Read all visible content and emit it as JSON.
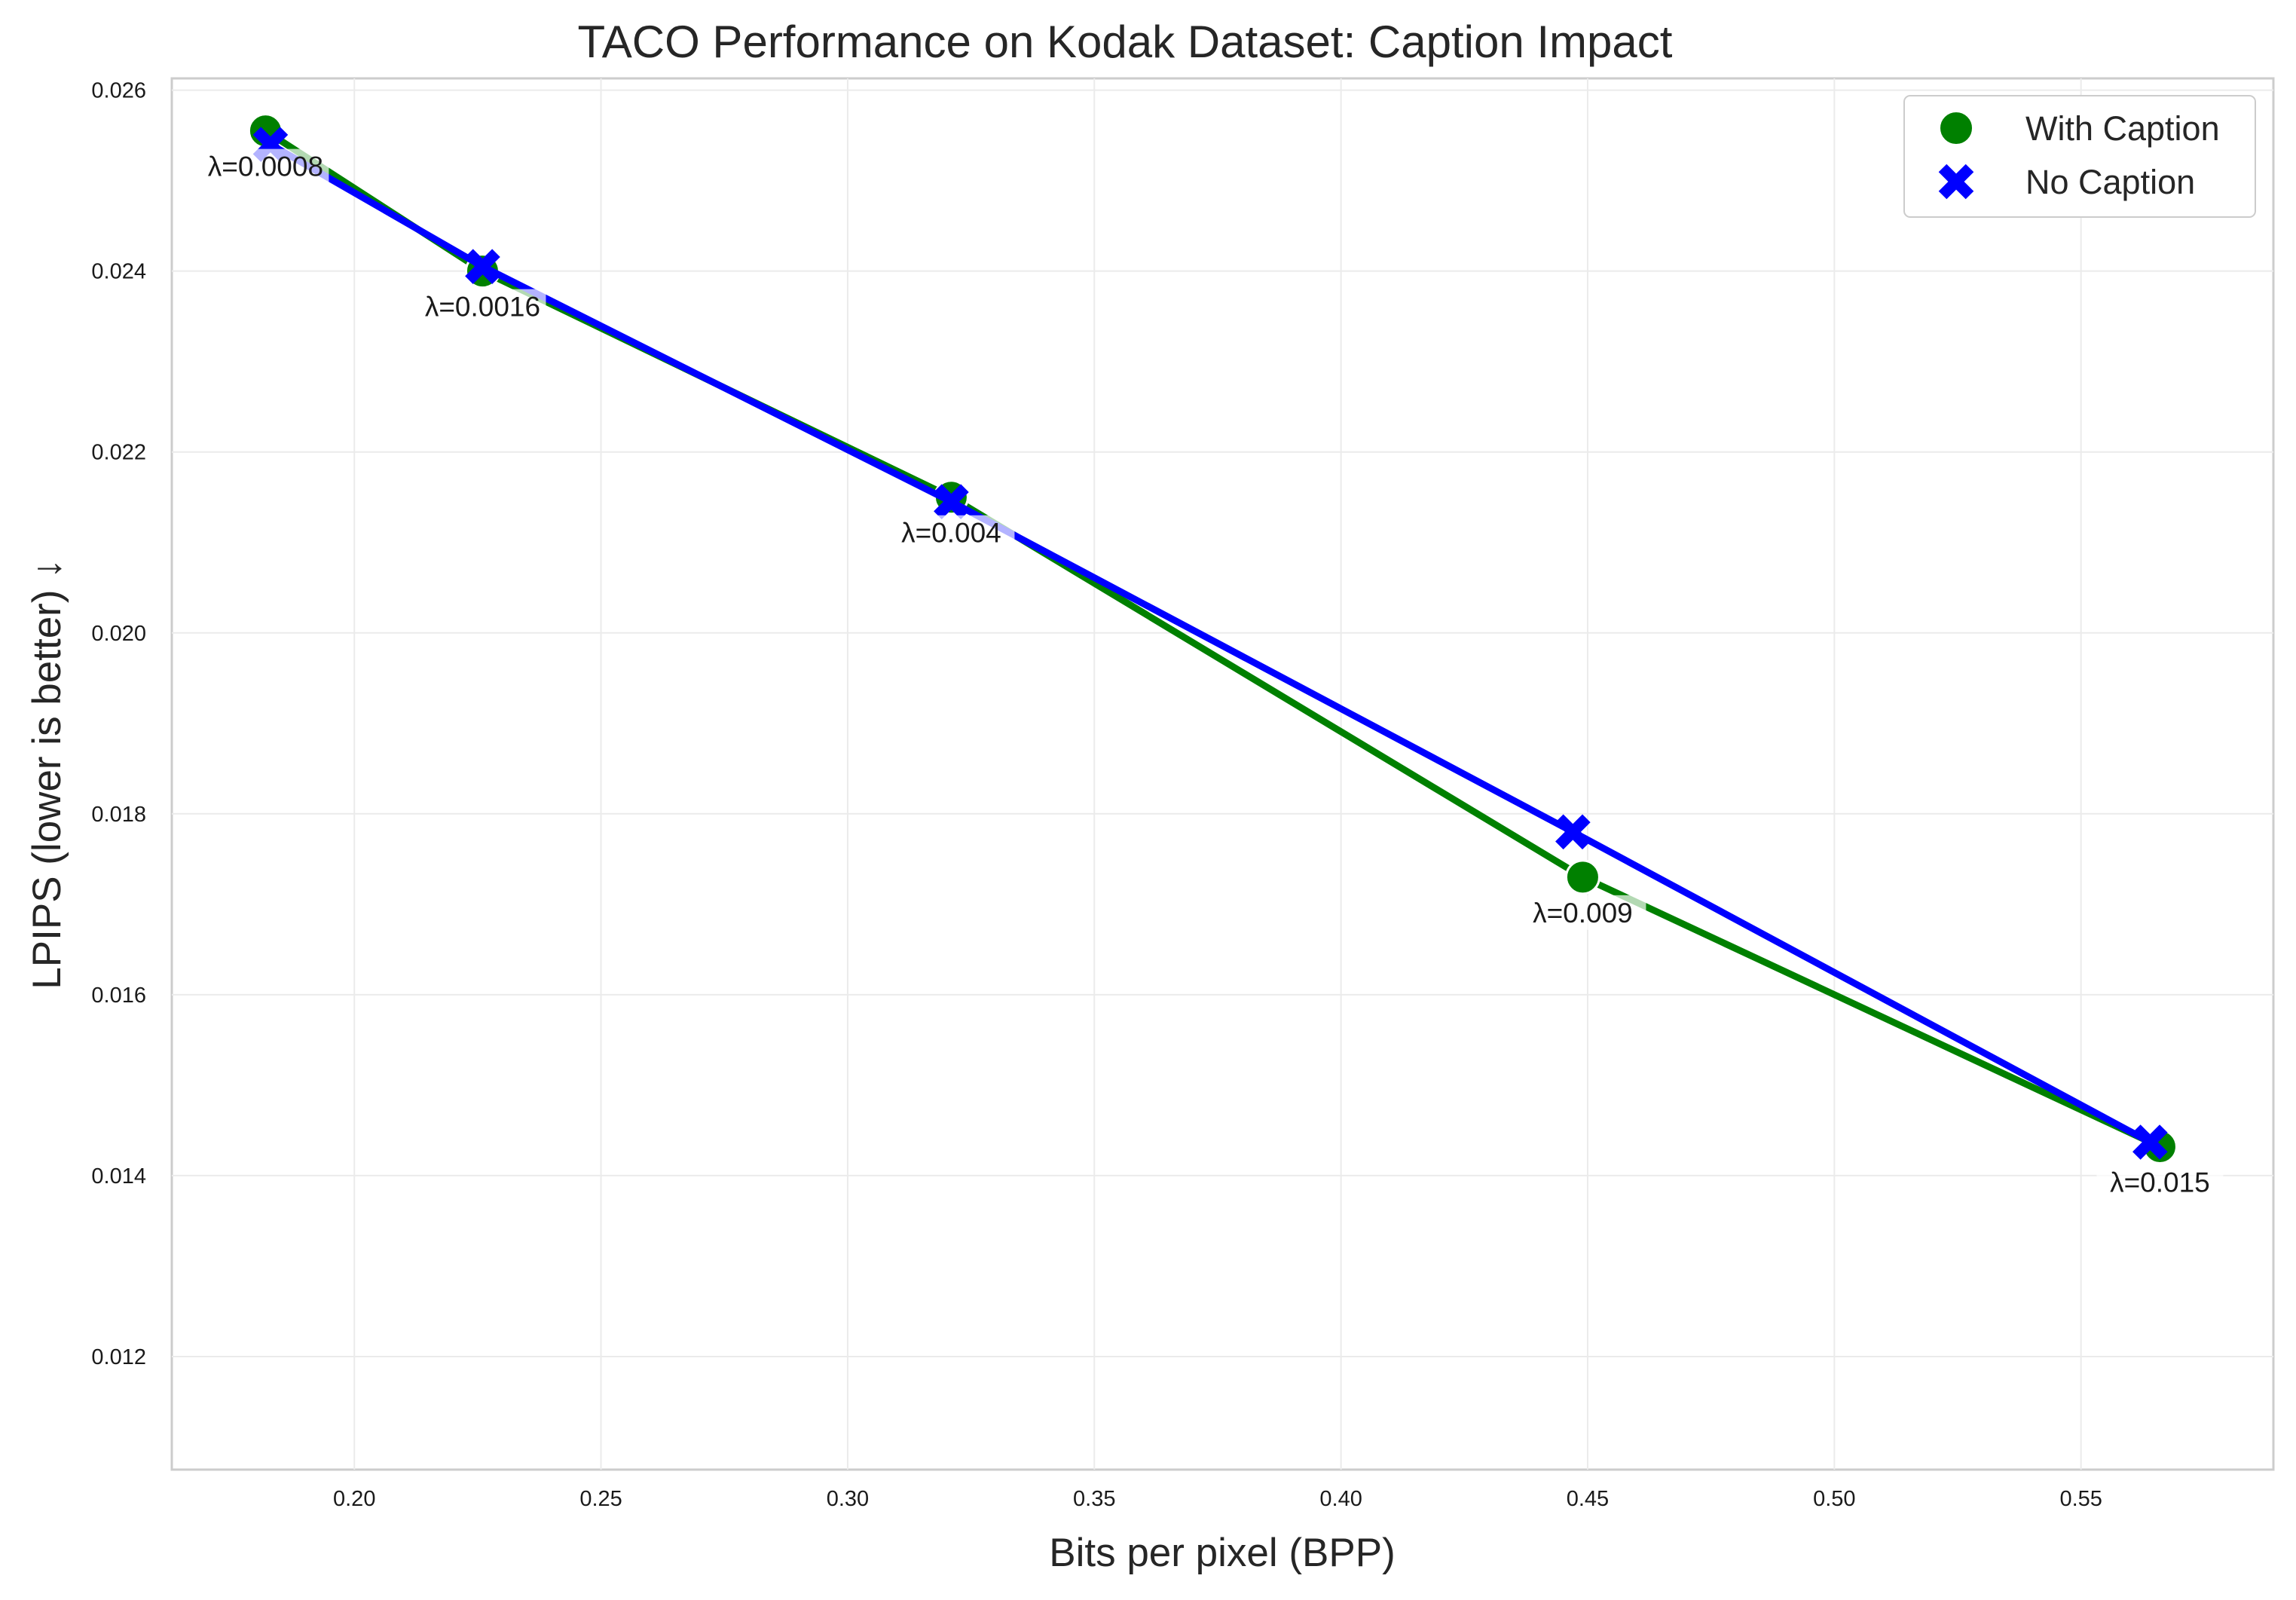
{
  "chart_data": {
    "type": "line",
    "title": "TACO Performance on Kodak Dataset: Caption Impact",
    "xlabel": "Bits per pixel (BPP)",
    "ylabel": "LPIPS (lower is better) ↓",
    "xlim": [
      0.163,
      0.589
    ],
    "ylim": [
      0.01075,
      0.02613
    ],
    "xticks": [
      "0.20",
      "0.25",
      "0.30",
      "0.35",
      "0.40",
      "0.45",
      "0.50",
      "0.55"
    ],
    "yticks": [
      "0.012",
      "0.014",
      "0.016",
      "0.018",
      "0.020",
      "0.022",
      "0.024",
      "0.026"
    ],
    "grid": true,
    "legend_position": "top-right",
    "series": [
      {
        "name": "With Caption",
        "color": "#008000",
        "marker": "circle",
        "x": [
          0.182,
          0.226,
          0.321,
          0.449,
          0.566
        ],
        "y": [
          0.02555,
          0.024,
          0.0215,
          0.0173,
          0.01432
        ]
      },
      {
        "name": "No Caption",
        "color": "#0000ff",
        "marker": "x",
        "x": [
          0.183,
          0.226,
          0.321,
          0.447,
          0.564
        ],
        "y": [
          0.0254,
          0.02405,
          0.02145,
          0.0178,
          0.01437
        ]
      }
    ],
    "annotations": [
      {
        "text": "λ=0.0008",
        "x": 0.182,
        "y": 0.02555
      },
      {
        "text": "λ=0.0016",
        "x": 0.226,
        "y": 0.024
      },
      {
        "text": "λ=0.004",
        "x": 0.321,
        "y": 0.0215
      },
      {
        "text": "λ=0.009",
        "x": 0.449,
        "y": 0.0173
      },
      {
        "text": "λ=0.015",
        "x": 0.566,
        "y": 0.01432
      }
    ]
  }
}
